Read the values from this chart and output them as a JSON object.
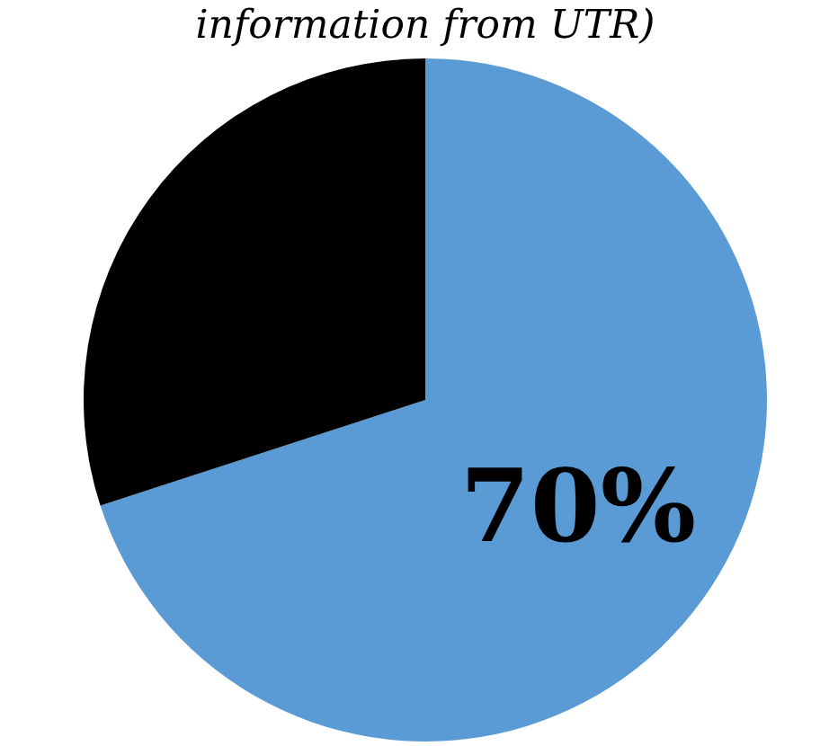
{
  "chart_data": {
    "type": "pie",
    "title": "information from UTR)",
    "categories": [
      null,
      null
    ],
    "values": [
      70,
      30
    ],
    "colors": [
      "#5b9bd5",
      "#000000"
    ],
    "value_labels": [
      "70%",
      null
    ]
  }
}
